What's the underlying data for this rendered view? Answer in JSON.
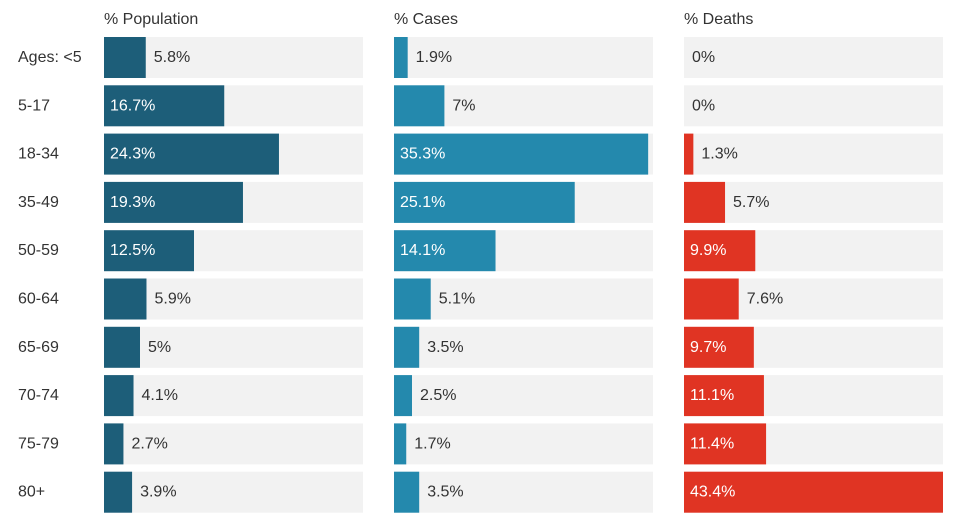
{
  "chart_data": {
    "type": "bar",
    "orientation": "horizontal",
    "categories": [
      "Ages: <5",
      "5-17",
      "18-34",
      "35-49",
      "50-59",
      "60-64",
      "65-69",
      "70-74",
      "75-79",
      "80+"
    ],
    "panels": [
      {
        "title": "% Population",
        "color": "#1d5e79",
        "labels": [
          "5.8%",
          "16.7%",
          "24.3%",
          "19.3%",
          "12.5%",
          "5.9%",
          "5%",
          "4.1%",
          "2.7%",
          "3.9%"
        ],
        "values": [
          5.8,
          16.7,
          24.3,
          19.3,
          12.5,
          5.9,
          5,
          4.1,
          2.7,
          3.9
        ]
      },
      {
        "title": "% Cases",
        "color": "#2489ad",
        "labels": [
          "1.9%",
          "7%",
          "35.3%",
          "25.1%",
          "14.1%",
          "5.1%",
          "3.5%",
          "2.5%",
          "1.7%",
          "3.5%"
        ],
        "values": [
          1.9,
          7,
          35.3,
          25.1,
          14.1,
          5.1,
          3.5,
          2.5,
          1.7,
          3.5
        ]
      },
      {
        "title": "% Deaths",
        "color": "#e03423",
        "labels": [
          "0%",
          "0%",
          "1.3%",
          "5.7%",
          "9.9%",
          "7.6%",
          "9.7%",
          "11.1%",
          "11.4%",
          "43.4%"
        ],
        "values": [
          0,
          0,
          1.3,
          5.7,
          9.9,
          7.6,
          9.7,
          11.1,
          11.4,
          43.4
        ]
      }
    ],
    "xlim": [
      0,
      100
    ],
    "background_track_color": "#f2f2f2",
    "grid": false,
    "legend": "none"
  }
}
